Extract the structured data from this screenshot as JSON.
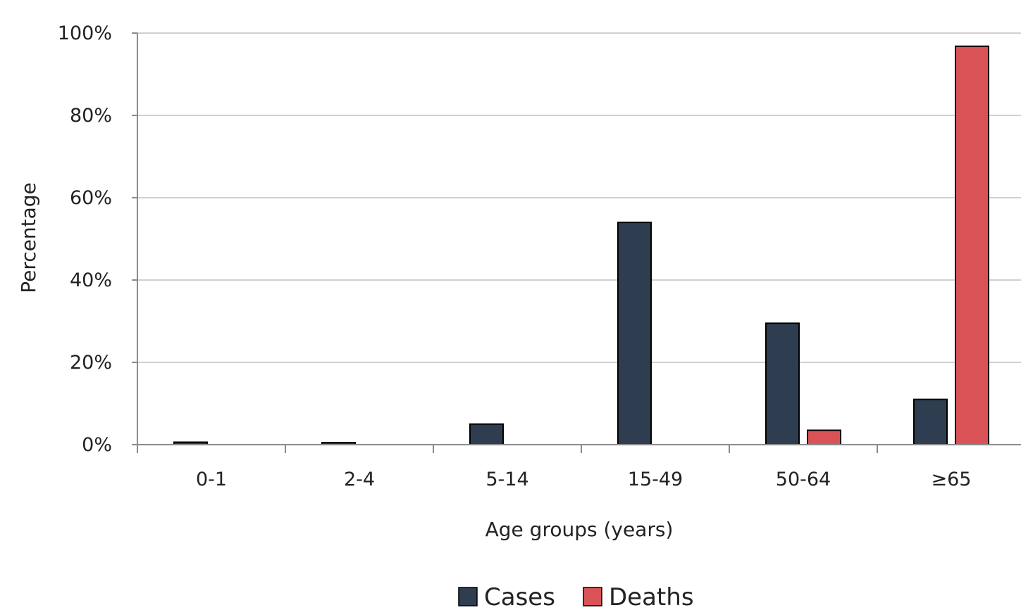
{
  "chart_data": {
    "type": "bar",
    "title": "",
    "xlabel": "Age groups (years)",
    "ylabel": "Percentage",
    "ylim": [
      0,
      100
    ],
    "yticks": [
      0,
      20,
      40,
      60,
      80,
      100
    ],
    "ytick_labels": [
      "0%",
      "20%",
      "40%",
      "60%",
      "80%",
      "100%"
    ],
    "categories": [
      "0-1",
      "2-4",
      "5-14",
      "15-49",
      "50-64",
      "≥65"
    ],
    "series": [
      {
        "name": "Cases",
        "color": "#2f3d50",
        "values": [
          0.6,
          0.5,
          5.0,
          54.0,
          29.5,
          11.0
        ]
      },
      {
        "name": "Deaths",
        "color": "#d95356",
        "values": [
          0,
          0,
          0,
          0,
          3.5,
          96.8
        ]
      }
    ],
    "grid": true,
    "legend_position": "bottom-center"
  }
}
